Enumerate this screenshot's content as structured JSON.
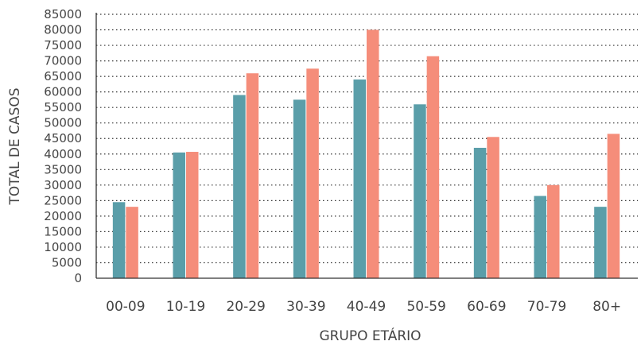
{
  "chart_data": {
    "type": "bar",
    "title": "",
    "xlabel": "GRUPO ETÁRIO",
    "ylabel": "TOTAL DE CASOS",
    "categories": [
      "00-09",
      "10-19",
      "20-29",
      "30-39",
      "40-49",
      "50-59",
      "60-69",
      "70-79",
      "80+"
    ],
    "series": [
      {
        "color": "#5a9ea9",
        "values": [
          24500,
          40500,
          59000,
          57500,
          64000,
          56000,
          42000,
          26500,
          23000
        ]
      },
      {
        "color": "#f58d7a",
        "values": [
          23000,
          40700,
          66000,
          67500,
          80000,
          71500,
          45500,
          30000,
          46500
        ]
      }
    ],
    "ylim": [
      0,
      85000
    ],
    "yticks": [
      0,
      5000,
      10000,
      15000,
      20000,
      25000,
      30000,
      35000,
      40000,
      45000,
      50000,
      55000,
      60000,
      65000,
      70000,
      75000,
      80000,
      85000
    ],
    "grid": true,
    "legend": "none"
  }
}
